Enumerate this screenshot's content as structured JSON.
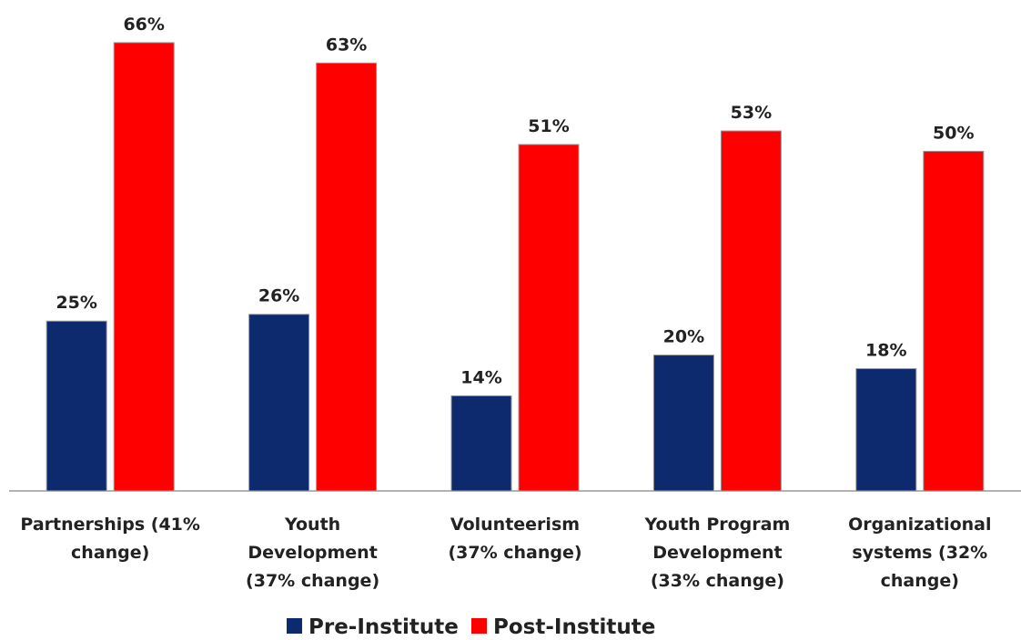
{
  "chart_data": {
    "type": "bar",
    "categories": [
      "Partnerships (41%\nchange)",
      "Youth\nDevelopment\n(37% change)",
      "Volunteerism\n(37% change)",
      "Youth Program\nDevelopment\n(33% change)",
      "Organizational\nsystems (32%\nchange)"
    ],
    "series": [
      {
        "name": "Pre-Institute",
        "color": "#0e2a6e",
        "values": [
          25,
          26,
          14,
          20,
          18
        ],
        "value_labels": [
          "25%",
          "26%",
          "14%",
          "20%",
          "18%"
        ]
      },
      {
        "name": "Post-Institute",
        "color": "#ff0000",
        "values": [
          66,
          63,
          51,
          53,
          50
        ],
        "value_labels": [
          "66%",
          "63%",
          "51%",
          "53%",
          "50%"
        ]
      }
    ],
    "ylim": [
      0,
      70
    ],
    "legend": "bottom"
  }
}
